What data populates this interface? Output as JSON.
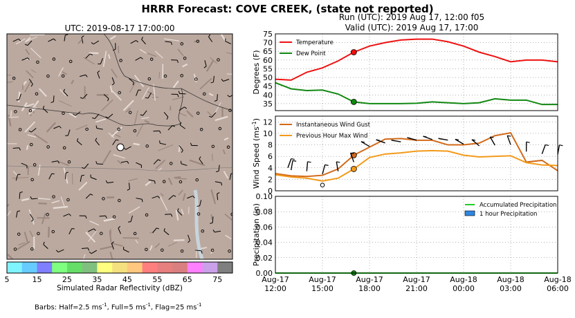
{
  "header": {
    "title": "HRRR Forecast: COVE CREEK, (state not reported)",
    "run": "Run (UTC): 2019 Aug 17, 12:00 f05",
    "valid": "Valid (UTC): 2019 Aug 17, 17:00"
  },
  "map": {
    "title": "UTC: 2019-08-17 17:00:00",
    "colorbar_label": "Simulated Radar Reflectivity (dBZ)",
    "colorbar_ticks": [
      "5",
      "15",
      "25",
      "35",
      "45",
      "55",
      "65",
      "75"
    ],
    "colorbar_colors": [
      "#7ff4ff",
      "#66ccff",
      "#7f7fff",
      "#7fff7f",
      "#66dd66",
      "#7fc07f",
      "#ffff7f",
      "#f4e07f",
      "#ffc87f",
      "#ff7f7f",
      "#e77f7f",
      "#d97f7f",
      "#ff7fff",
      "#caa0e8",
      "#7f7f7f"
    ],
    "barb_note_prefix": "Barbs: Half=2.5 ms",
    "barb_note_mid1": ", Full=5 ms",
    "barb_note_mid2": ", Flag=25 ms",
    "barb_note_exp": "-1"
  },
  "chart_data": [
    {
      "type": "line",
      "ylabel": "Degrees (F)",
      "ylim": [
        31,
        75
      ],
      "yticks": [
        "35",
        "40",
        "45",
        "50",
        "55",
        "60",
        "65",
        "70",
        "75"
      ],
      "grid": true,
      "legend_position": "top-left",
      "x_hours": [
        0,
        1,
        2,
        3,
        4,
        5,
        6,
        7,
        8,
        9,
        10,
        11,
        12,
        13,
        14,
        15,
        16,
        17,
        18
      ],
      "series": [
        {
          "name": "Temperature",
          "color": "#ee1111",
          "values": [
            49,
            48.5,
            53,
            55.5,
            59.5,
            64.5,
            68,
            70,
            71.5,
            72,
            72,
            70.5,
            68,
            64.5,
            62,
            59,
            60,
            60,
            59
          ]
        },
        {
          "name": "Dew Point",
          "color": "#118811",
          "values": [
            47,
            43.5,
            42.5,
            42.8,
            40.5,
            36,
            35,
            35,
            35,
            35.2,
            36,
            35.5,
            35,
            35.5,
            37.8,
            37,
            37,
            34.5,
            34.5
          ]
        }
      ],
      "current_hour": 5,
      "current_values": [
        64.5,
        36
      ]
    },
    {
      "type": "line",
      "ylabel": "Wind Speed (ms",
      "ylabel_exp": "-1",
      "ylabel_end": ")",
      "ylim": [
        0,
        13
      ],
      "yticks": [
        "0",
        "2",
        "4",
        "6",
        "8",
        "10",
        "12"
      ],
      "grid": true,
      "legend_position": "top-left",
      "series": [
        {
          "name": "Instantaneous Wind Gust",
          "color": "#d26a1a",
          "values": [
            3.0,
            2.6,
            2.5,
            2.7,
            3.8,
            6.2,
            7.6,
            9.0,
            9.1,
            8.8,
            8.8,
            8.0,
            8.0,
            8.3,
            9.6,
            10.1,
            5.0,
            5.3,
            3.5
          ]
        },
        {
          "name": "Previous Hour Max Wind",
          "color": "#f39a1a",
          "values": [
            2.8,
            2.4,
            2.2,
            1.7,
            2.2,
            3.8,
            5.8,
            6.4,
            6.6,
            6.9,
            7.0,
            6.9,
            6.2,
            5.9,
            6.0,
            6.1,
            4.9,
            4.5,
            4.4
          ]
        }
      ],
      "current_hour": 5
    },
    {
      "type": "line",
      "ylabel": "Precipitation (in)",
      "ylim": [
        0,
        0.1
      ],
      "yticks": [
        "0.00",
        "0.02",
        "0.04",
        "0.06",
        "0.08",
        "0.10"
      ],
      "grid": true,
      "legend_position": "top-right",
      "series": [
        {
          "name": "Accumulated Precipitation",
          "color": "#22cc22",
          "values": [
            0,
            0,
            0,
            0,
            0,
            0,
            0,
            0,
            0,
            0,
            0,
            0,
            0,
            0,
            0,
            0,
            0,
            0,
            0
          ]
        }
      ],
      "bar_legend": {
        "name": "1 hour Precipitation",
        "color": "#2f86e0"
      },
      "xticks": [
        {
          "h": 0,
          "line1": "Aug-17",
          "line2": "12:00"
        },
        {
          "h": 3,
          "line1": "Aug-17",
          "line2": "15:00"
        },
        {
          "h": 6,
          "line1": "Aug-17",
          "line2": "18:00"
        },
        {
          "h": 9,
          "line1": "Aug-17",
          "line2": "21:00"
        },
        {
          "h": 12,
          "line1": "Aug-18",
          "line2": "00:00"
        },
        {
          "h": 15,
          "line1": "Aug-18",
          "line2": "03:00"
        },
        {
          "h": 18,
          "line1": "Aug-18",
          "line2": "06:00"
        }
      ]
    }
  ]
}
